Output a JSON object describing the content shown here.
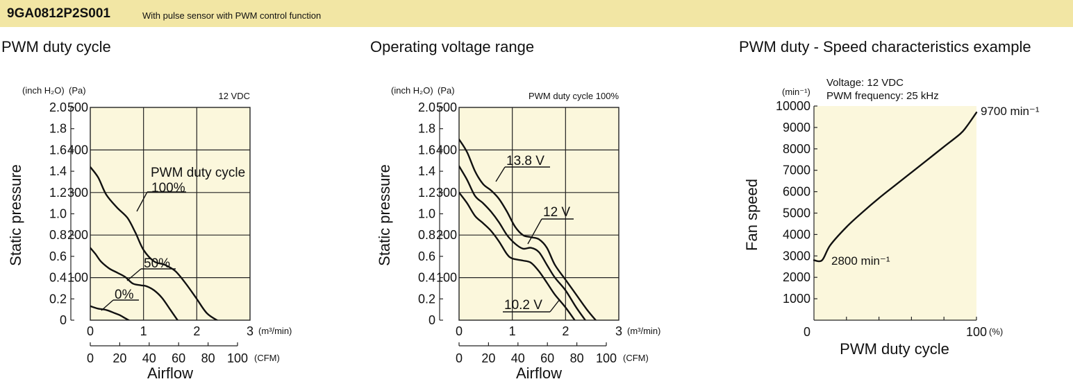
{
  "header": {
    "model": "9GA0812P2S001",
    "description": "With pulse sensor with PWM control function"
  },
  "chart_data": [
    {
      "type": "line",
      "title": "PWM duty cycle",
      "note": "12 VDC",
      "xlabel": "Airflow",
      "ylabel": "Static pressure",
      "x_unit": "(m³/min)",
      "x2_unit": "(CFM)",
      "y_unit_left": "(inch H₂O)",
      "y_unit_right": "(Pa)",
      "xlim": [
        0,
        3
      ],
      "ylim": [
        0,
        500
      ],
      "x_ticks": [
        "0",
        "1",
        "2",
        "3"
      ],
      "x2_ticks": [
        "0",
        "20",
        "40",
        "60",
        "80",
        "100"
      ],
      "y_inch_ticks": [
        "0",
        "0.2",
        "0.4",
        "0.6",
        "0.8",
        "1.0",
        "1.2",
        "1.4",
        "1.6",
        "1.8",
        "2.0"
      ],
      "y_pa_ticks": [
        "100",
        "200",
        "300",
        "400",
        "500"
      ],
      "series_title": "PWM duty cycle",
      "series": [
        {
          "name": "100%",
          "x": [
            0,
            0.15,
            0.3,
            0.5,
            0.7,
            0.85,
            1.0,
            1.2,
            1.4,
            1.6,
            1.8,
            2.0,
            2.2,
            2.45
          ],
          "y": [
            360,
            335,
            295,
            265,
            240,
            205,
            165,
            138,
            130,
            115,
            85,
            50,
            15,
            -5
          ]
        },
        {
          "name": "50%",
          "x": [
            0,
            0.1,
            0.2,
            0.35,
            0.5,
            0.65,
            0.8,
            0.95,
            1.05,
            1.2,
            1.35,
            1.5,
            1.65
          ],
          "y": [
            170,
            155,
            138,
            122,
            112,
            102,
            86,
            82,
            80,
            70,
            52,
            25,
            -2
          ]
        },
        {
          "name": "0%",
          "x": [
            0,
            0.15,
            0.3,
            0.45,
            0.55,
            0.65,
            0.75
          ],
          "y": [
            33,
            27,
            24,
            17,
            12,
            5,
            -2
          ]
        }
      ]
    },
    {
      "type": "line",
      "title": "Operating voltage range",
      "note": "PWM duty cycle 100%",
      "xlabel": "Airflow",
      "ylabel": "Static pressure",
      "x_unit": "(m³/min)",
      "x2_unit": "(CFM)",
      "y_unit_left": "(inch H₂O)",
      "y_unit_right": "(Pa)",
      "xlim": [
        0,
        3
      ],
      "ylim": [
        0,
        500
      ],
      "x_ticks": [
        "0",
        "1",
        "2",
        "3"
      ],
      "x2_ticks": [
        "0",
        "20",
        "40",
        "60",
        "80",
        "100"
      ],
      "y_inch_ticks": [
        "0",
        "0.2",
        "0.4",
        "0.6",
        "0.8",
        "1.0",
        "1.2",
        "1.4",
        "1.6",
        "1.8",
        "2.0"
      ],
      "y_pa_ticks": [
        "100",
        "200",
        "300",
        "400",
        "500"
      ],
      "series": [
        {
          "name": "13.8 V",
          "x": [
            0,
            0.15,
            0.3,
            0.45,
            0.6,
            0.75,
            0.9,
            1.05,
            1.2,
            1.35,
            1.5,
            1.65,
            1.8,
            2.0,
            2.2,
            2.4,
            2.6
          ],
          "y": [
            425,
            395,
            350,
            320,
            305,
            285,
            255,
            220,
            200,
            195,
            190,
            170,
            130,
            95,
            60,
            25,
            -5
          ]
        },
        {
          "name": "12 V",
          "x": [
            0,
            0.15,
            0.3,
            0.45,
            0.6,
            0.75,
            0.9,
            1.05,
            1.2,
            1.35,
            1.5,
            1.65,
            1.8,
            2.0,
            2.2,
            2.4
          ],
          "y": [
            362,
            330,
            292,
            275,
            255,
            230,
            200,
            180,
            168,
            170,
            160,
            130,
            100,
            70,
            30,
            -5
          ]
        },
        {
          "name": "10.2 V",
          "x": [
            0,
            0.15,
            0.3,
            0.45,
            0.6,
            0.75,
            0.9,
            1.0,
            1.2,
            1.35,
            1.5,
            1.65,
            1.8,
            2.0,
            2.2
          ],
          "y": [
            300,
            275,
            245,
            228,
            210,
            185,
            155,
            145,
            140,
            135,
            115,
            88,
            60,
            30,
            -5
          ]
        }
      ]
    },
    {
      "type": "line",
      "title": "PWM duty - Speed characteristics example",
      "note_lines": [
        "Voltage: 12 VDC",
        "PWM frequency: 25 kHz"
      ],
      "xlabel": "PWM duty cycle",
      "ylabel": "Fan speed",
      "x_unit": "(%)",
      "y_unit": "(min⁻¹)",
      "xlim": [
        0,
        100
      ],
      "ylim": [
        0,
        10000
      ],
      "x_tick_labels": [
        "0",
        "100"
      ],
      "y_ticks": [
        "1000",
        "2000",
        "3000",
        "4000",
        "5000",
        "6000",
        "7000",
        "8000",
        "9000",
        "10000"
      ],
      "annotations": [
        {
          "text": "2800 min⁻¹",
          "value": 2800
        },
        {
          "text": "9700 min⁻¹",
          "value": 9700
        }
      ],
      "series": [
        {
          "x": [
            0,
            5,
            10,
            20,
            30,
            40,
            50,
            60,
            70,
            80,
            90,
            94,
            100
          ],
          "y": [
            2800,
            2800,
            3500,
            4350,
            5050,
            5700,
            6300,
            6900,
            7500,
            8100,
            8700,
            9050,
            9700
          ]
        }
      ]
    }
  ]
}
